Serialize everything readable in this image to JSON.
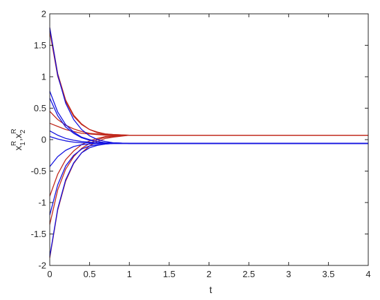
{
  "chart_data": {
    "type": "line",
    "title": "",
    "xlabel": "t",
    "ylabel": "x^R_1, x^R_2",
    "ylabel_parts": {
      "x": "x",
      "sub1": "1",
      "sup1": "R",
      "comma": ",",
      "sub2": "2",
      "sup2": "R"
    },
    "xlim": [
      0,
      4
    ],
    "ylim": [
      -2,
      2
    ],
    "grid": false,
    "x_ticks": [
      0,
      0.5,
      1,
      1.5,
      2,
      2.5,
      3,
      3.5,
      4
    ],
    "x_tick_labels": [
      "0",
      "0.5",
      "1",
      "1.5",
      "2",
      "2.5",
      "3",
      "3.5",
      "4"
    ],
    "y_ticks": [
      -2,
      -1.5,
      -1,
      -0.5,
      0,
      0.5,
      1,
      1.5,
      2
    ],
    "y_tick_labels": [
      "-2",
      "-1.5",
      "-1",
      "-0.5",
      "0",
      "0.5",
      "1",
      "1.5",
      "2"
    ],
    "colors": {
      "red": "#c0281c",
      "blue": "#1212e0",
      "axis": "#262626"
    },
    "equilibrium": {
      "red": 0.07,
      "blue": -0.06
    },
    "series": [
      {
        "color": "red",
        "x": [
          0,
          0.1,
          0.2,
          0.3,
          0.4,
          0.5,
          0.6,
          0.7,
          0.8,
          1.0,
          4.0
        ],
        "y": [
          1.78,
          1.05,
          0.63,
          0.39,
          0.25,
          0.16,
          0.12,
          0.09,
          0.08,
          0.07,
          0.07
        ]
      },
      {
        "color": "red",
        "x": [
          0,
          0.1,
          0.2,
          0.3,
          0.4,
          0.5,
          0.6,
          0.7,
          0.8,
          1.0,
          4.0
        ],
        "y": [
          1.72,
          1.01,
          0.61,
          0.37,
          0.24,
          0.16,
          0.11,
          0.09,
          0.08,
          0.07,
          0.07
        ]
      },
      {
        "color": "red",
        "x": [
          0,
          0.1,
          0.2,
          0.3,
          0.4,
          0.5,
          0.6,
          0.7,
          0.8,
          1.0,
          4.0
        ],
        "y": [
          0.45,
          0.32,
          0.23,
          0.17,
          0.13,
          0.1,
          0.09,
          0.08,
          0.07,
          0.07,
          0.07
        ]
      },
      {
        "color": "red",
        "x": [
          0,
          0.1,
          0.2,
          0.3,
          0.4,
          0.5,
          0.6,
          0.7,
          0.8,
          1.0,
          4.0
        ],
        "y": [
          0.26,
          0.21,
          0.16,
          0.13,
          0.1,
          0.09,
          0.08,
          0.07,
          0.07,
          0.07,
          0.07
        ]
      },
      {
        "color": "red",
        "x": [
          0,
          0.1,
          0.2,
          0.3,
          0.4,
          0.5,
          0.6,
          0.7,
          0.8,
          1.0,
          4.0
        ],
        "y": [
          -0.9,
          -0.55,
          -0.32,
          -0.18,
          -0.08,
          -0.02,
          0.02,
          0.05,
          0.06,
          0.07,
          0.07
        ]
      },
      {
        "color": "red",
        "x": [
          0,
          0.1,
          0.2,
          0.3,
          0.4,
          0.5,
          0.6,
          0.7,
          0.8,
          1.0,
          4.0
        ],
        "y": [
          -1.35,
          -0.8,
          -0.47,
          -0.27,
          -0.14,
          -0.06,
          0.0,
          0.04,
          0.05,
          0.07,
          0.07
        ]
      },
      {
        "color": "red",
        "x": [
          0,
          0.1,
          0.2,
          0.3,
          0.4,
          0.5,
          0.6,
          0.7,
          0.8,
          1.0,
          4.0
        ],
        "y": [
          -1.88,
          -1.12,
          -0.66,
          -0.38,
          -0.21,
          -0.1,
          -0.03,
          0.02,
          0.04,
          0.07,
          0.07
        ]
      },
      {
        "color": "blue",
        "x": [
          0,
          0.1,
          0.2,
          0.3,
          0.4,
          0.5,
          0.6,
          0.7,
          0.8,
          1.0,
          4.0
        ],
        "y": [
          1.78,
          1.03,
          0.58,
          0.32,
          0.16,
          0.06,
          0.0,
          -0.03,
          -0.05,
          -0.06,
          -0.06
        ]
      },
      {
        "color": "blue",
        "x": [
          0,
          0.1,
          0.2,
          0.3,
          0.4,
          0.5,
          0.6,
          0.7,
          0.8,
          1.0,
          4.0
        ],
        "y": [
          0.77,
          0.44,
          0.24,
          0.12,
          0.04,
          0.0,
          -0.03,
          -0.05,
          -0.05,
          -0.06,
          -0.06
        ]
      },
      {
        "color": "blue",
        "x": [
          0,
          0.1,
          0.2,
          0.3,
          0.4,
          0.5,
          0.6,
          0.7,
          0.8,
          1.0,
          4.0
        ],
        "y": [
          0.66,
          0.38,
          0.2,
          0.1,
          0.03,
          -0.01,
          -0.03,
          -0.05,
          -0.05,
          -0.06,
          -0.06
        ]
      },
      {
        "color": "blue",
        "x": [
          0,
          0.1,
          0.2,
          0.3,
          0.4,
          0.5,
          0.6,
          0.7,
          0.8,
          1.0,
          4.0
        ],
        "y": [
          0.14,
          0.07,
          0.02,
          -0.01,
          -0.03,
          -0.04,
          -0.05,
          -0.05,
          -0.06,
          -0.06,
          -0.06
        ]
      },
      {
        "color": "blue",
        "x": [
          0,
          0.1,
          0.2,
          0.3,
          0.4,
          0.5,
          0.6,
          0.7,
          0.8,
          1.0,
          4.0
        ],
        "y": [
          0.05,
          0.01,
          -0.02,
          -0.04,
          -0.05,
          -0.05,
          -0.06,
          -0.06,
          -0.06,
          -0.06,
          -0.06
        ]
      },
      {
        "color": "blue",
        "x": [
          0,
          0.1,
          0.2,
          0.3,
          0.4,
          0.5,
          0.6,
          0.7,
          0.8,
          1.0,
          4.0
        ],
        "y": [
          -0.43,
          -0.27,
          -0.17,
          -0.11,
          -0.08,
          -0.07,
          -0.06,
          -0.06,
          -0.06,
          -0.06,
          -0.06
        ]
      },
      {
        "color": "blue",
        "x": [
          0,
          0.1,
          0.2,
          0.3,
          0.4,
          0.5,
          0.6,
          0.7,
          0.8,
          1.0,
          4.0
        ],
        "y": [
          -1.2,
          -0.72,
          -0.42,
          -0.25,
          -0.15,
          -0.1,
          -0.08,
          -0.07,
          -0.06,
          -0.06,
          -0.06
        ]
      },
      {
        "color": "blue",
        "x": [
          0,
          0.1,
          0.2,
          0.3,
          0.4,
          0.5,
          0.6,
          0.7,
          0.8,
          1.0,
          4.0
        ],
        "y": [
          -1.86,
          -1.1,
          -0.64,
          -0.37,
          -0.21,
          -0.13,
          -0.09,
          -0.07,
          -0.06,
          -0.06,
          -0.06
        ]
      }
    ]
  }
}
